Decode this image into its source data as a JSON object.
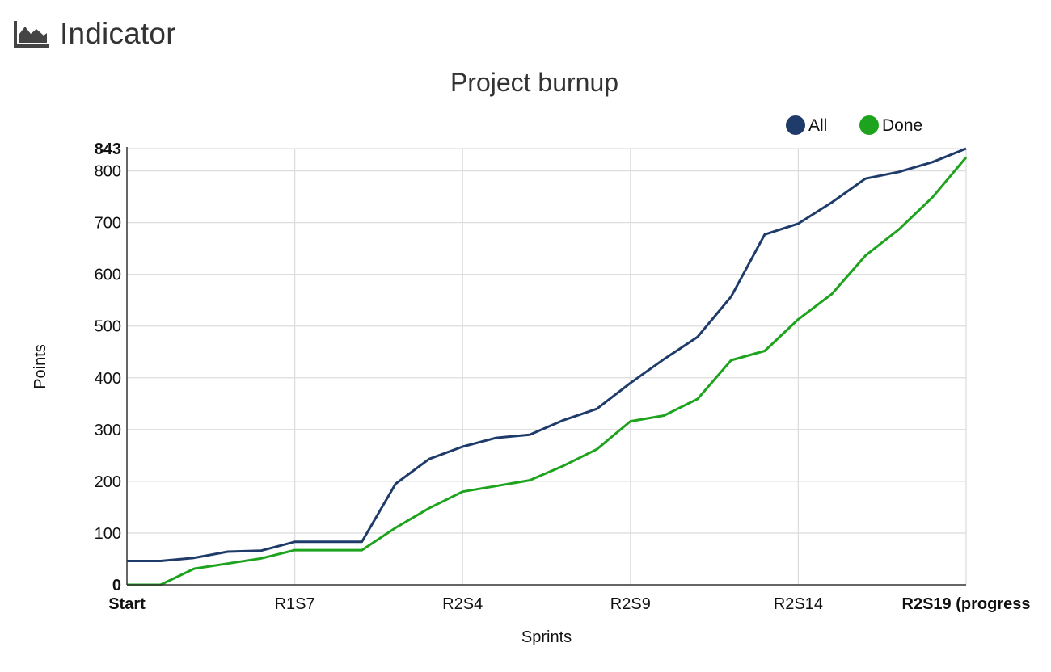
{
  "header": {
    "icon": "area-chart-icon",
    "title": "Indicator"
  },
  "chart_data": {
    "type": "line",
    "title": "Project burnup",
    "xlabel": "Sprints",
    "ylabel": "Points",
    "x_tick_labels": [
      "Start",
      "R1S7",
      "R2S4",
      "R2S9",
      "R2S14",
      "R2S19 (progress"
    ],
    "y_tick_labels": [
      "0",
      "100",
      "200",
      "300",
      "400",
      "500",
      "600",
      "700",
      "800",
      "843"
    ],
    "ylim": [
      0,
      843
    ],
    "grid": true,
    "legend_position": "top-right",
    "series": [
      {
        "name": "All",
        "color": "#1f3b6a",
        "values": [
          46,
          46,
          52,
          64,
          66,
          83,
          83,
          83,
          195,
          243,
          267,
          284,
          290,
          318,
          340,
          390,
          436,
          479,
          557,
          677,
          698,
          739,
          785,
          798,
          817,
          843
        ]
      },
      {
        "name": "Done",
        "color": "#1ea31e",
        "values": [
          0,
          0,
          31,
          41,
          51,
          67,
          67,
          67,
          110,
          148,
          180,
          191,
          202,
          230,
          262,
          316,
          327,
          359,
          434,
          452,
          513,
          562,
          636,
          687,
          749,
          826
        ]
      }
    ]
  }
}
